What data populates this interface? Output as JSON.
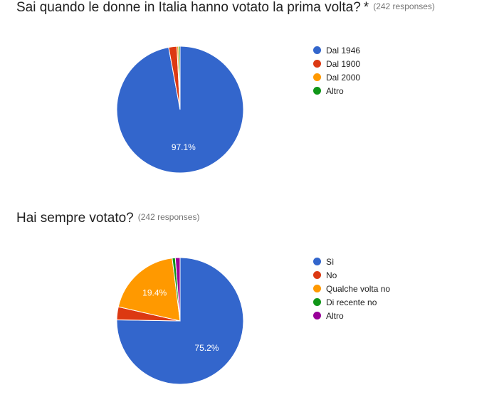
{
  "chart_data": [
    {
      "type": "pie",
      "title": "Sai quando le donne in Italia hanno votato la prima volta?",
      "required_marker": "*",
      "responses": "(242 responses)",
      "categories": [
        "Dal 1946",
        "Dal 1900",
        "Dal 2000",
        "Altro"
      ],
      "values": [
        97.1,
        2.1,
        0.4,
        0.4
      ],
      "colors": [
        "#3366cc",
        "#dc3912",
        "#ff9900",
        "#109618"
      ],
      "data_labels": [
        {
          "index": 0,
          "text": "97.1%"
        }
      ],
      "legend_position": "right"
    },
    {
      "type": "pie",
      "title": "Hai sempre votato?",
      "responses": "(242 responses)",
      "categories": [
        "Sì",
        "No",
        "Qualche volta no",
        "Di recente no",
        "Altro"
      ],
      "values": [
        75.2,
        3.3,
        19.4,
        0.8,
        1.2
      ],
      "colors": [
        "#3366cc",
        "#dc3912",
        "#ff9900",
        "#109618",
        "#990099"
      ],
      "data_labels": [
        {
          "index": 0,
          "text": "75.2%"
        },
        {
          "index": 2,
          "text": "19.4%"
        }
      ],
      "legend_position": "right"
    }
  ]
}
